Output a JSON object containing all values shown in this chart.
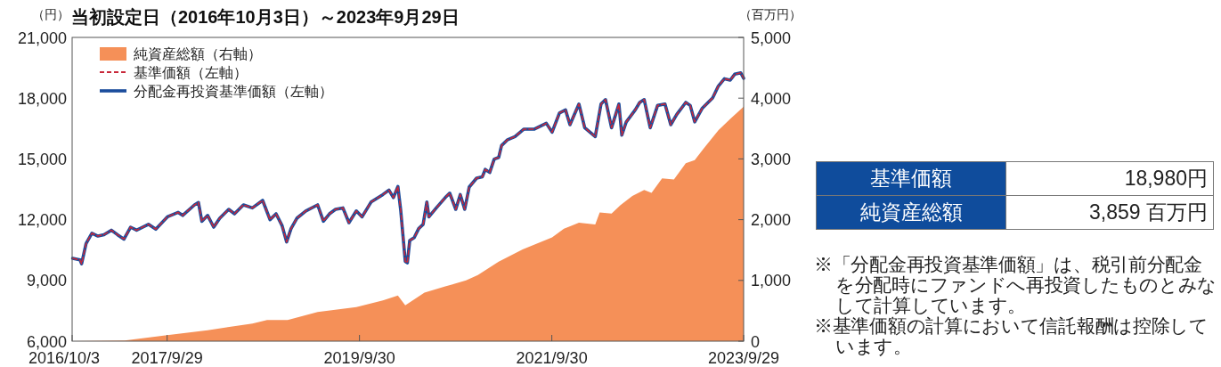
{
  "chart_data": {
    "type": "line",
    "title": "当初設定日（2016年10月3日）～2023年9月29日",
    "ylabel": "（円）",
    "y2label": "（百万円）",
    "xlim": [
      "2016-10-03",
      "2023-09-29"
    ],
    "xticks": [
      {
        "value": "2016-10-03",
        "label": "2016/10/3"
      },
      {
        "value": "2017-09-29",
        "label": "2017/9/29"
      },
      {
        "value": "2019-09-30",
        "label": "2019/9/30"
      },
      {
        "value": "2021-09-30",
        "label": "2021/9/30"
      },
      {
        "value": "2023-09-29",
        "label": "2023/9/29"
      }
    ],
    "ylim": [
      6000,
      21000
    ],
    "yticks": [
      {
        "value": 6000,
        "label": "6,000"
      },
      {
        "value": 9000,
        "label": "9,000"
      },
      {
        "value": 12000,
        "label": "12,000"
      },
      {
        "value": 15000,
        "label": "15,000"
      },
      {
        "value": 18000,
        "label": "18,000"
      },
      {
        "value": 21000,
        "label": "21,000"
      }
    ],
    "y2lim": [
      0,
      5000
    ],
    "y2ticks": [
      0,
      {
        "value": 1000,
        "label": "1,000"
      },
      {
        "value": 2000,
        "label": "2,000"
      },
      {
        "value": 3000,
        "label": "3,000"
      },
      {
        "value": 4000,
        "label": "4,000"
      },
      {
        "value": 5000,
        "label": "5,000"
      }
    ],
    "legend": "top left",
    "series": [
      {
        "name": "純資産総額（右軸）",
        "type": "area",
        "axis": "y2",
        "color": "#f59058",
        "x": [
          "2016-10-03",
          "2017-04-21",
          "2017-09-29",
          "2018-03-02",
          "2018-08-19",
          "2018-10-14",
          "2018-12-31",
          "2019-04-24",
          "2019-09-18",
          "2019-12-28",
          "2020-02-23",
          "2020-03-22",
          "2020-06-03",
          "2020-08-21",
          "2020-11-08",
          "2020-12-23",
          "2021-03-12",
          "2021-06-11",
          "2021-10-01",
          "2021-11-15",
          "2022-01-11",
          "2022-03-14",
          "2022-03-31",
          "2022-05-15",
          "2022-06-18",
          "2022-08-02",
          "2022-09-16",
          "2022-10-14",
          "2022-11-23",
          "2023-01-07",
          "2023-02-21",
          "2023-03-27",
          "2023-04-30",
          "2023-06-25",
          "2023-08-09",
          "2023-09-29"
        ],
        "values": [
          0,
          10,
          100,
          180,
          290,
          350,
          350,
          480,
          560,
          670,
          750,
          590,
          800,
          900,
          1000,
          1090,
          1310,
          1510,
          1710,
          1850,
          1950,
          1920,
          2120,
          2100,
          2240,
          2390,
          2490,
          2440,
          2680,
          2660,
          2930,
          2980,
          3170,
          3470,
          3660,
          3859
        ]
      },
      {
        "name": "基準価額（左軸）",
        "line_style": "dashed",
        "color": "#c8283a",
        "x": [
          "2016-10-05",
          "2016-11-02",
          "2016-11-08",
          "2016-11-25",
          "2016-12-17",
          "2017-01-09",
          "2017-02-01",
          "2017-03-01",
          "2017-03-24",
          "2017-04-18",
          "2017-05-13",
          "2017-06-05",
          "2017-07-20",
          "2017-08-17",
          "2017-09-30",
          "2017-11-10",
          "2017-11-27",
          "2018-01-11",
          "2018-01-26",
          "2018-02-08",
          "2018-03-02",
          "2018-03-25",
          "2018-04-17",
          "2018-05-21",
          "2018-06-12",
          "2018-07-16",
          "2018-08-19",
          "2018-09-27",
          "2018-10-25",
          "2018-11-17",
          "2018-12-10",
          "2018-12-27",
          "2019-01-13",
          "2019-02-04",
          "2019-03-10",
          "2019-04-24",
          "2019-05-16",
          "2019-06-08",
          "2019-07-01",
          "2019-07-29",
          "2019-08-21",
          "2019-09-18",
          "2019-10-10",
          "2019-11-13",
          "2019-12-28",
          "2020-01-20",
          "2020-02-06",
          "2020-02-23",
          "2020-03-05",
          "2020-03-16",
          "2020-03-22",
          "2020-03-30",
          "2020-04-08",
          "2020-04-25",
          "2020-05-12",
          "2020-05-29",
          "2020-06-12",
          "2020-06-20",
          "2020-07-18",
          "2020-08-21",
          "2020-09-07",
          "2020-09-30",
          "2020-10-17",
          "2020-11-03",
          "2020-11-20",
          "2020-12-18",
          "2021-01-09",
          "2021-01-20",
          "2021-02-06",
          "2021-02-23",
          "2021-03-12",
          "2021-03-23",
          "2021-04-15",
          "2021-05-13",
          "2021-06-16",
          "2021-07-26",
          "2021-09-09",
          "2021-10-01",
          "2021-10-29",
          "2021-11-21",
          "2021-12-08",
          "2022-01-11",
          "2022-02-02",
          "2022-03-14",
          "2022-04-05",
          "2022-04-22",
          "2022-05-15",
          "2022-06-12",
          "2022-06-23",
          "2022-07-10",
          "2022-08-13",
          "2022-08-30",
          "2022-09-16",
          "2022-10-09",
          "2022-11-06",
          "2022-12-04",
          "2022-12-26",
          "2023-01-18",
          "2023-02-21",
          "2023-03-10",
          "2023-03-27",
          "2023-04-24",
          "2023-06-03",
          "2023-06-25",
          "2023-07-18",
          "2023-08-09",
          "2023-08-26",
          "2023-09-18",
          "2023-09-29"
        ],
        "values": [
          10090,
          10010,
          9820,
          10820,
          11330,
          11190,
          11260,
          11480,
          11260,
          11040,
          11630,
          11480,
          11770,
          11530,
          12140,
          12360,
          12210,
          12730,
          12850,
          11920,
          12210,
          11630,
          12070,
          12510,
          12290,
          12730,
          12580,
          12950,
          12000,
          12290,
          11700,
          10900,
          11560,
          12070,
          12430,
          12730,
          11920,
          12290,
          12510,
          12580,
          11850,
          12430,
          12140,
          12870,
          13240,
          13460,
          13090,
          13640,
          12430,
          10820,
          9940,
          9870,
          10970,
          11110,
          11560,
          11770,
          12870,
          12140,
          12580,
          13090,
          13310,
          12510,
          13240,
          12510,
          13610,
          14050,
          14120,
          14480,
          14330,
          14990,
          15070,
          15660,
          15950,
          16100,
          16470,
          16470,
          16760,
          16320,
          17270,
          17420,
          16690,
          17710,
          16540,
          16100,
          17710,
          17930,
          16540,
          17710,
          16170,
          16830,
          17420,
          17790,
          17930,
          16540,
          17640,
          17710,
          16690,
          17200,
          17790,
          17640,
          16830,
          17490,
          18010,
          18600,
          18960,
          18890,
          19180,
          19250,
          18980
        ]
      },
      {
        "name": "分配金再投資基準価額（左軸）",
        "line_style": "solid",
        "color": "#1a4c9c",
        "x": [
          "2016-10-05",
          "2016-11-02",
          "2016-11-08",
          "2016-11-25",
          "2016-12-17",
          "2017-01-09",
          "2017-02-01",
          "2017-03-01",
          "2017-03-24",
          "2017-04-18",
          "2017-05-13",
          "2017-06-05",
          "2017-07-20",
          "2017-08-17",
          "2017-09-30",
          "2017-11-10",
          "2017-11-27",
          "2018-01-11",
          "2018-01-26",
          "2018-02-08",
          "2018-03-02",
          "2018-03-25",
          "2018-04-17",
          "2018-05-21",
          "2018-06-12",
          "2018-07-16",
          "2018-08-19",
          "2018-09-27",
          "2018-10-25",
          "2018-11-17",
          "2018-12-10",
          "2018-12-27",
          "2019-01-13",
          "2019-02-04",
          "2019-03-10",
          "2019-04-24",
          "2019-05-16",
          "2019-06-08",
          "2019-07-01",
          "2019-07-29",
          "2019-08-21",
          "2019-09-18",
          "2019-10-10",
          "2019-11-13",
          "2019-12-28",
          "2020-01-20",
          "2020-02-06",
          "2020-02-23",
          "2020-03-05",
          "2020-03-16",
          "2020-03-22",
          "2020-03-30",
          "2020-04-08",
          "2020-04-25",
          "2020-05-12",
          "2020-05-29",
          "2020-06-12",
          "2020-06-20",
          "2020-07-18",
          "2020-08-21",
          "2020-09-07",
          "2020-09-30",
          "2020-10-17",
          "2020-11-03",
          "2020-11-20",
          "2020-12-18",
          "2021-01-09",
          "2021-01-20",
          "2021-02-06",
          "2021-02-23",
          "2021-03-12",
          "2021-03-23",
          "2021-04-15",
          "2021-05-13",
          "2021-06-16",
          "2021-07-26",
          "2021-09-09",
          "2021-10-01",
          "2021-10-29",
          "2021-11-21",
          "2021-12-08",
          "2022-01-11",
          "2022-02-02",
          "2022-03-14",
          "2022-04-05",
          "2022-04-22",
          "2022-05-15",
          "2022-06-12",
          "2022-06-23",
          "2022-07-10",
          "2022-08-13",
          "2022-08-30",
          "2022-09-16",
          "2022-10-09",
          "2022-11-06",
          "2022-12-04",
          "2022-12-26",
          "2023-01-18",
          "2023-02-21",
          "2023-03-10",
          "2023-03-27",
          "2023-04-24",
          "2023-06-03",
          "2023-06-25",
          "2023-07-18",
          "2023-08-09",
          "2023-08-26",
          "2023-09-18",
          "2023-09-29"
        ],
        "values": [
          10090,
          10010,
          9820,
          10820,
          11330,
          11190,
          11260,
          11480,
          11260,
          11040,
          11630,
          11480,
          11770,
          11530,
          12140,
          12360,
          12210,
          12730,
          12850,
          11920,
          12210,
          11630,
          12070,
          12510,
          12290,
          12730,
          12580,
          12950,
          12000,
          12290,
          11700,
          10900,
          11560,
          12070,
          12430,
          12730,
          11920,
          12290,
          12510,
          12580,
          11850,
          12430,
          12140,
          12870,
          13240,
          13460,
          13090,
          13640,
          12430,
          10820,
          9940,
          9870,
          10970,
          11110,
          11560,
          11770,
          12870,
          12140,
          12580,
          13090,
          13310,
          12510,
          13240,
          12510,
          13610,
          14050,
          14120,
          14480,
          14330,
          14990,
          15070,
          15660,
          15950,
          16100,
          16470,
          16470,
          16760,
          16320,
          17270,
          17420,
          16690,
          17710,
          16540,
          16100,
          17710,
          17930,
          16540,
          17710,
          16170,
          16830,
          17420,
          17790,
          17930,
          16540,
          17640,
          17710,
          16690,
          17200,
          17790,
          17640,
          16830,
          17490,
          18010,
          18600,
          18960,
          18890,
          19180,
          19250,
          18980
        ]
      }
    ],
    "annotations": [
      "基準価額",
      "18,980円",
      "純資産総額",
      "3,859 百万円",
      "※「分配金再投資基準価額」は、税引前分配金を分配時にファンドへ再投資したものとみなして計算しています。",
      "※基準価額の計算において信託報酬は控除しています。"
    ]
  }
}
